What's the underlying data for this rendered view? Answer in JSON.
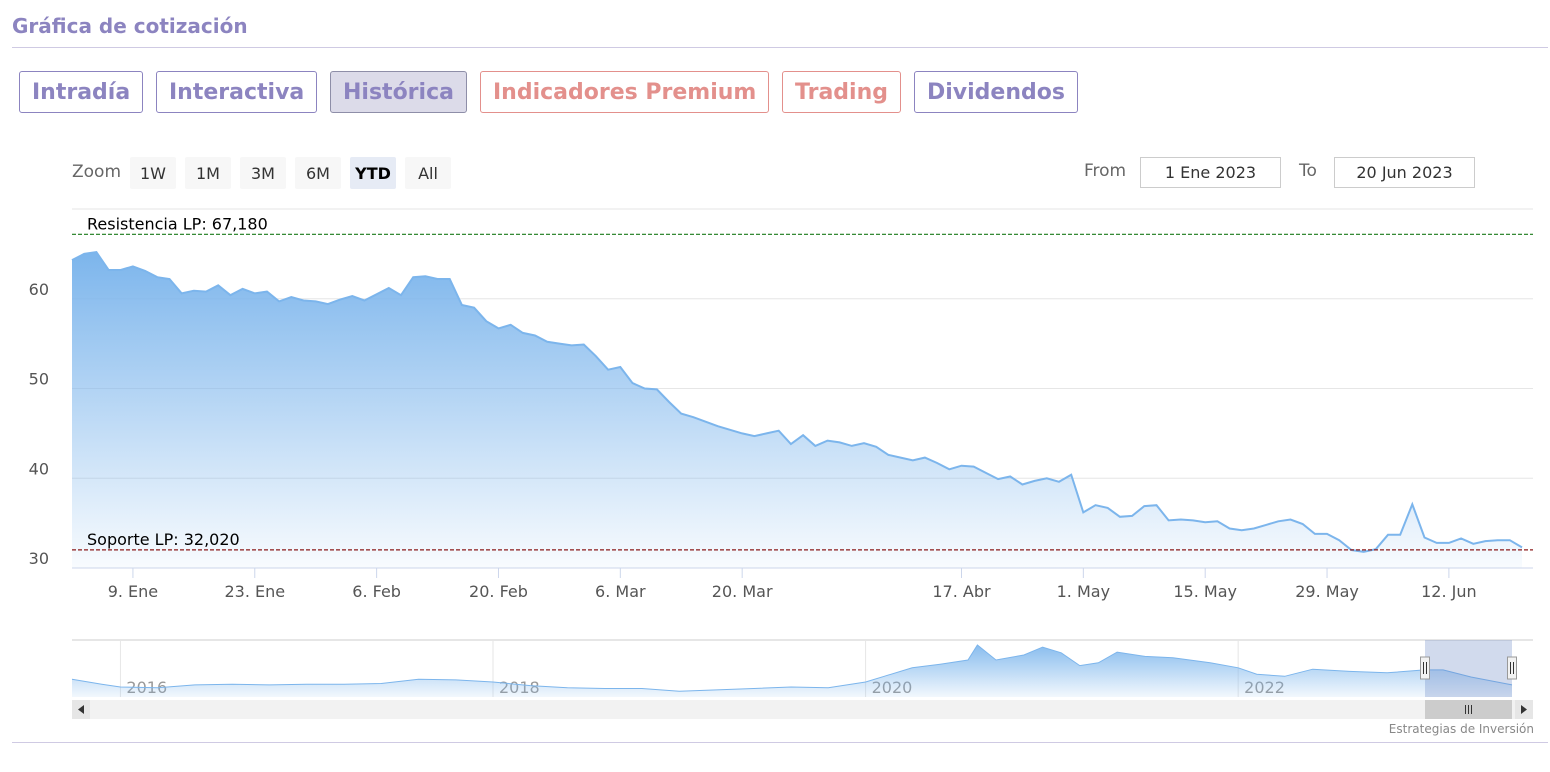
{
  "header": {
    "title": "Gráfica de cotización"
  },
  "tabs": [
    {
      "label": "Intradía",
      "color": "#8c84c0"
    },
    {
      "label": "Interactiva",
      "color": "#8c84c0"
    },
    {
      "label": "Histórica",
      "color": "#8c84c0",
      "active": true
    },
    {
      "label": "Indicadores Premium",
      "color": "#e3908c"
    },
    {
      "label": "Trading",
      "color": "#e3908c"
    },
    {
      "label": "Dividendos",
      "color": "#8c84c0"
    }
  ],
  "zoom": {
    "label": "Zoom",
    "buttons": [
      {
        "label": "1W"
      },
      {
        "label": "1M"
      },
      {
        "label": "3M"
      },
      {
        "label": "6M"
      },
      {
        "label": "YTD",
        "active": true
      },
      {
        "label": "All"
      }
    ]
  },
  "range": {
    "from_label": "From",
    "from": "1 Ene 2023",
    "to_label": "To",
    "to": "20 Jun 2023"
  },
  "credits": "Estrategias de Inversión",
  "chart_data": [
    {
      "type": "area",
      "color": "#7cb5ec",
      "grid": true,
      "x": [
        "2023-01-02",
        "2023-01-03",
        "2023-01-04",
        "2023-01-05",
        "2023-01-06",
        "2023-01-09",
        "2023-01-10",
        "2023-01-11",
        "2023-01-12",
        "2023-01-13",
        "2023-01-16",
        "2023-01-17",
        "2023-01-18",
        "2023-01-19",
        "2023-01-20",
        "2023-01-23",
        "2023-01-24",
        "2023-01-25",
        "2023-01-26",
        "2023-01-27",
        "2023-01-30",
        "2023-01-31",
        "2023-02-01",
        "2023-02-02",
        "2023-02-03",
        "2023-02-06",
        "2023-02-07",
        "2023-02-08",
        "2023-02-09",
        "2023-02-10",
        "2023-02-13",
        "2023-02-14",
        "2023-02-15",
        "2023-02-16",
        "2023-02-17",
        "2023-02-20",
        "2023-02-21",
        "2023-02-22",
        "2023-02-23",
        "2023-02-24",
        "2023-02-27",
        "2023-02-28",
        "2023-03-01",
        "2023-03-02",
        "2023-03-03",
        "2023-03-06",
        "2023-03-07",
        "2023-03-08",
        "2023-03-09",
        "2023-03-10",
        "2023-03-13",
        "2023-03-14",
        "2023-03-15",
        "2023-03-16",
        "2023-03-17",
        "2023-03-20",
        "2023-03-21",
        "2023-03-22",
        "2023-03-23",
        "2023-03-24",
        "2023-03-27",
        "2023-03-28",
        "2023-03-29",
        "2023-03-30",
        "2023-03-31",
        "2023-04-03",
        "2023-04-04",
        "2023-04-05",
        "2023-04-06",
        "2023-04-11",
        "2023-04-12",
        "2023-04-13",
        "2023-04-14",
        "2023-04-17",
        "2023-04-18",
        "2023-04-19",
        "2023-04-20",
        "2023-04-21",
        "2023-04-24",
        "2023-04-25",
        "2023-04-26",
        "2023-04-27",
        "2023-04-28",
        "2023-05-01",
        "2023-05-02",
        "2023-05-03",
        "2023-05-04",
        "2023-05-05",
        "2023-05-08",
        "2023-05-09",
        "2023-05-10",
        "2023-05-11",
        "2023-05-12",
        "2023-05-15",
        "2023-05-16",
        "2023-05-17",
        "2023-05-18",
        "2023-05-19",
        "2023-05-22",
        "2023-05-23",
        "2023-05-24",
        "2023-05-25",
        "2023-05-26",
        "2023-05-29",
        "2023-05-30",
        "2023-05-31",
        "2023-06-01",
        "2023-06-02",
        "2023-06-05",
        "2023-06-06",
        "2023-06-07",
        "2023-06-08",
        "2023-06-09",
        "2023-06-12",
        "2023-06-13",
        "2023-06-14",
        "2023-06-15",
        "2023-06-16",
        "2023-06-19",
        "2023-06-20"
      ],
      "values": [
        64.3,
        65.0,
        65.2,
        63.2,
        63.2,
        63.6,
        63.1,
        62.4,
        62.2,
        60.6,
        60.9,
        60.8,
        61.5,
        60.4,
        61.1,
        60.6,
        60.8,
        59.7,
        60.2,
        59.8,
        59.7,
        59.4,
        59.9,
        60.3,
        59.8,
        60.5,
        61.2,
        60.4,
        62.4,
        62.5,
        62.2,
        62.2,
        59.3,
        59.0,
        57.5,
        56.7,
        57.1,
        56.2,
        55.9,
        55.2,
        55.0,
        54.8,
        54.9,
        53.6,
        52.1,
        52.4,
        50.6,
        50.0,
        49.9,
        48.5,
        47.2,
        46.8,
        46.3,
        45.8,
        45.4,
        45.0,
        44.7,
        45.0,
        45.3,
        43.8,
        44.8,
        43.6,
        44.2,
        44.0,
        43.6,
        43.9,
        43.5,
        42.6,
        42.3,
        42.0,
        42.3,
        41.7,
        41.0,
        41.4,
        41.3,
        40.6,
        39.9,
        40.2,
        39.3,
        39.7,
        40.0,
        39.6,
        40.4,
        36.2,
        37.0,
        36.7,
        35.7,
        35.8,
        36.9,
        37.0,
        35.3,
        35.4,
        35.3,
        35.1,
        35.2,
        34.4,
        34.2,
        34.4,
        34.8,
        35.2,
        35.4,
        34.9,
        33.8,
        33.8,
        33.1,
        32.0,
        31.8,
        32.1,
        33.7,
        33.7,
        37.1,
        33.4,
        32.8,
        32.8,
        33.3,
        32.7,
        33.0,
        33.1,
        33.1,
        32.3
      ],
      "ylim": [
        30,
        70
      ],
      "yticks": [
        30,
        40,
        50,
        60
      ],
      "xticks": [
        {
          "value": "2023-01-09",
          "label": "9. Ene"
        },
        {
          "value": "2023-01-23",
          "label": "23. Ene"
        },
        {
          "value": "2023-02-06",
          "label": "6. Feb"
        },
        {
          "value": "2023-02-20",
          "label": "20. Feb"
        },
        {
          "value": "2023-03-06",
          "label": "6. Mar"
        },
        {
          "value": "2023-03-20",
          "label": "20. Mar"
        },
        {
          "value": "2023-04-17",
          "label": "17. Abr"
        },
        {
          "value": "2023-05-01",
          "label": "1. May"
        },
        {
          "value": "2023-05-15",
          "label": "15. May"
        },
        {
          "value": "2023-05-29",
          "label": "29. May"
        },
        {
          "value": "2023-06-12",
          "label": "12. Jun"
        }
      ],
      "plot_lines": [
        {
          "value": 67.18,
          "label": "Resistencia LP: 67,180",
          "color": "#1a7a1a"
        },
        {
          "value": 32.02,
          "label": "Soporte LP: 32,020",
          "color": "#8b1a1a"
        }
      ]
    },
    {
      "type": "area",
      "color": "#7cb5ec",
      "x": [
        2015.74,
        2015.9,
        2016.0,
        2016.2,
        2016.4,
        2016.6,
        2016.8,
        2017.0,
        2017.2,
        2017.4,
        2017.6,
        2017.8,
        2018.0,
        2018.2,
        2018.4,
        2018.6,
        2018.8,
        2019.0,
        2019.2,
        2019.4,
        2019.6,
        2019.8,
        2020.0,
        2020.1,
        2020.25,
        2020.4,
        2020.55,
        2020.6,
        2020.7,
        2020.85,
        2020.95,
        2021.05,
        2021.15,
        2021.25,
        2021.35,
        2021.5,
        2021.65,
        2021.85,
        2022.0,
        2022.1,
        2022.25,
        2022.4,
        2022.6,
        2022.8,
        2023.0,
        2023.1,
        2023.25,
        2023.47
      ],
      "values": [
        40,
        33,
        29,
        28,
        32,
        33,
        32,
        33,
        33,
        34,
        40,
        39,
        36,
        31,
        28,
        27,
        27,
        23,
        25,
        27,
        29,
        28,
        36,
        44,
        56,
        61,
        67,
        88,
        67,
        74,
        85,
        77,
        59,
        63,
        78,
        72,
        70,
        63,
        56,
        47,
        44,
        54,
        51,
        49,
        53,
        53,
        43,
        32
      ],
      "xlim": [
        2015.74,
        2023.47
      ],
      "ylim": [
        15,
        95
      ],
      "xticks": [
        2016,
        2018,
        2020,
        2022
      ]
    }
  ]
}
